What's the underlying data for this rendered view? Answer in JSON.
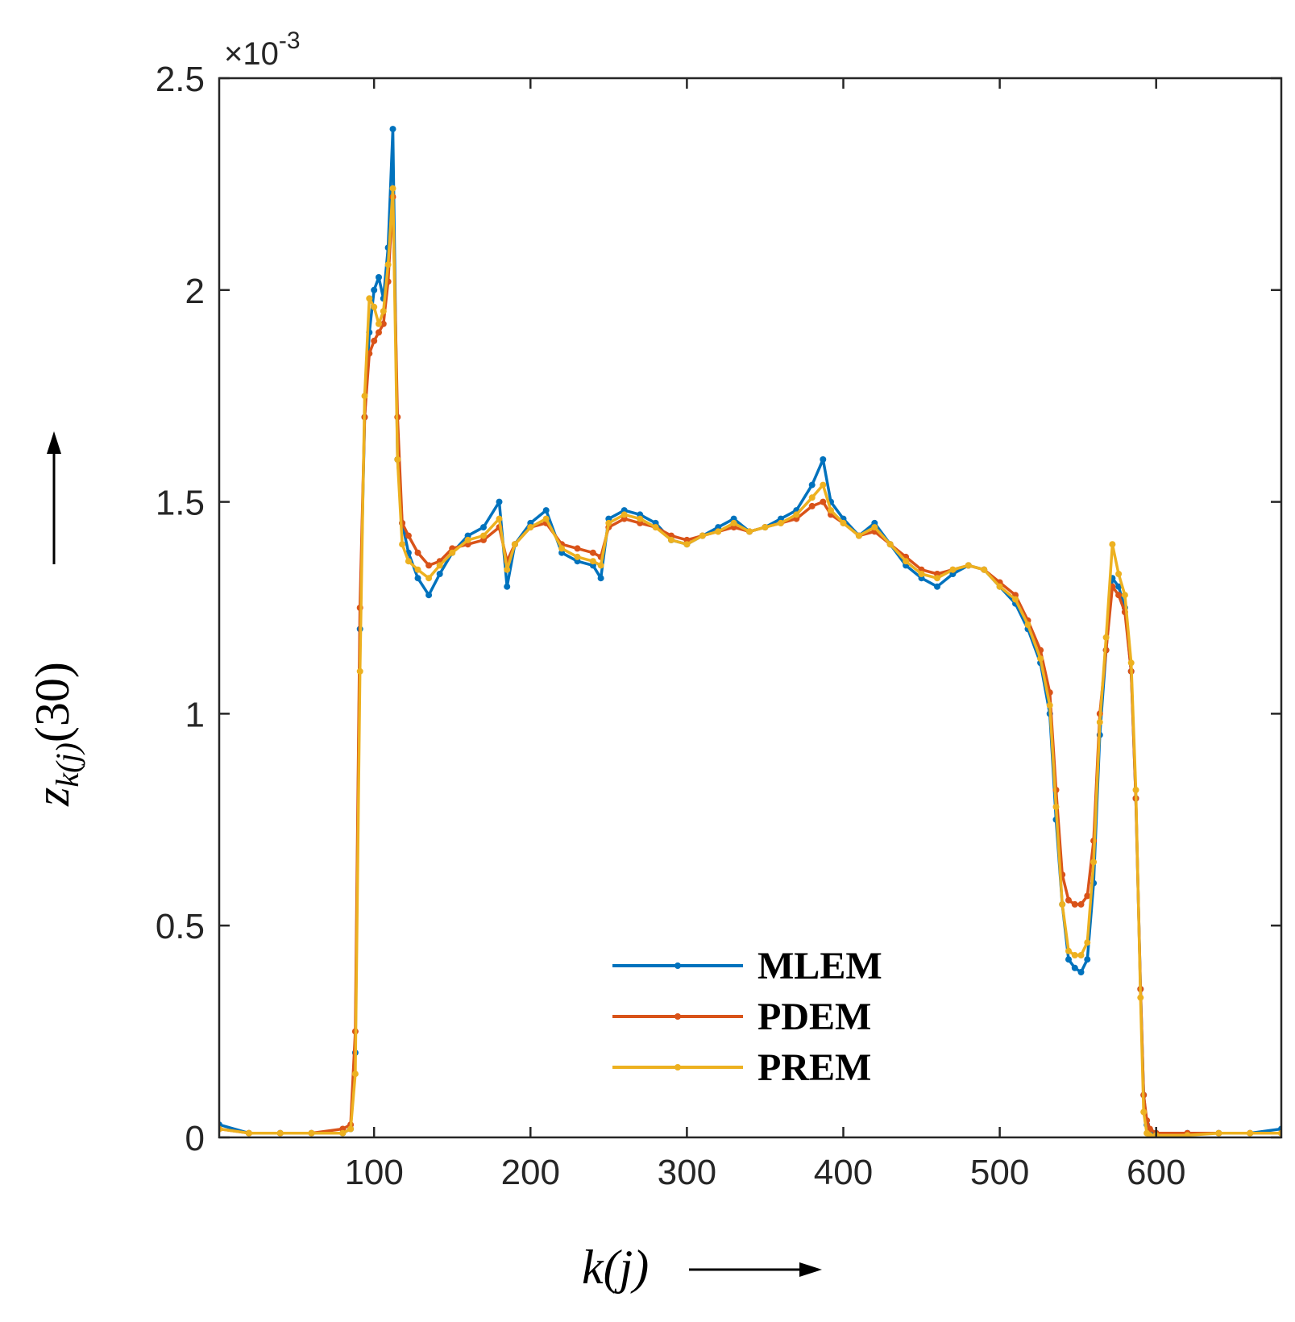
{
  "chart_data": {
    "type": "line",
    "title": "",
    "xlabel": "k(j)",
    "ylabel": "z_{k(j)}(30)",
    "y_exponent_label": "×10^-3",
    "xlim": [
      1,
      680
    ],
    "ylim": [
      0,
      2.5
    ],
    "xticks": [
      100,
      200,
      300,
      400,
      500,
      600
    ],
    "yticks": [
      0,
      0.5,
      1,
      1.5,
      2,
      2.5
    ],
    "ytick_labels": [
      "0",
      "0.5",
      "1",
      "1.5",
      "2",
      "2.5"
    ],
    "legend_position": "bottom-center",
    "series": [
      {
        "name": "MLEM",
        "color": "#0072BD",
        "x": [
          1,
          20,
          40,
          60,
          80,
          85,
          88,
          91,
          94,
          97,
          100,
          103,
          106,
          109,
          112,
          115,
          118,
          122,
          128,
          135,
          142,
          150,
          160,
          170,
          180,
          185,
          190,
          200,
          210,
          220,
          230,
          240,
          245,
          250,
          260,
          270,
          280,
          290,
          300,
          310,
          320,
          330,
          340,
          350,
          360,
          370,
          380,
          387,
          392,
          400,
          410,
          420,
          430,
          440,
          450,
          460,
          470,
          480,
          490,
          500,
          510,
          518,
          526,
          532,
          536,
          540,
          544,
          548,
          552,
          556,
          560,
          564,
          568,
          572,
          576,
          580,
          584,
          587,
          590,
          592,
          594,
          596,
          600,
          620,
          640,
          660,
          680
        ],
        "values": [
          0.03,
          0.01,
          0.01,
          0.01,
          0.01,
          0.02,
          0.2,
          1.2,
          1.7,
          1.9,
          2.0,
          2.03,
          1.98,
          2.1,
          2.38,
          1.6,
          1.45,
          1.38,
          1.32,
          1.28,
          1.33,
          1.38,
          1.42,
          1.44,
          1.5,
          1.3,
          1.4,
          1.45,
          1.48,
          1.38,
          1.36,
          1.35,
          1.32,
          1.46,
          1.48,
          1.47,
          1.45,
          1.41,
          1.4,
          1.42,
          1.44,
          1.46,
          1.43,
          1.44,
          1.46,
          1.48,
          1.54,
          1.6,
          1.5,
          1.46,
          1.42,
          1.45,
          1.4,
          1.35,
          1.32,
          1.3,
          1.33,
          1.35,
          1.34,
          1.3,
          1.26,
          1.2,
          1.12,
          1.0,
          0.75,
          0.55,
          0.42,
          0.4,
          0.39,
          0.42,
          0.6,
          0.95,
          1.15,
          1.32,
          1.3,
          1.25,
          1.1,
          0.8,
          0.35,
          0.1,
          0.03,
          0.01,
          0.01,
          0.01,
          0.01,
          0.01,
          0.02
        ]
      },
      {
        "name": "PDEM",
        "color": "#D95319",
        "x": [
          1,
          20,
          40,
          60,
          80,
          85,
          88,
          91,
          94,
          97,
          100,
          103,
          106,
          109,
          112,
          115,
          118,
          122,
          128,
          135,
          142,
          150,
          160,
          170,
          180,
          185,
          190,
          200,
          210,
          220,
          230,
          240,
          245,
          250,
          260,
          270,
          280,
          290,
          300,
          310,
          320,
          330,
          340,
          350,
          360,
          370,
          380,
          387,
          392,
          400,
          410,
          420,
          430,
          440,
          450,
          460,
          470,
          480,
          490,
          500,
          510,
          518,
          526,
          532,
          536,
          540,
          544,
          548,
          552,
          556,
          560,
          564,
          568,
          572,
          576,
          580,
          584,
          587,
          590,
          592,
          594,
          596,
          600,
          620,
          640,
          660,
          680
        ],
        "values": [
          0.02,
          0.01,
          0.01,
          0.01,
          0.02,
          0.03,
          0.25,
          1.25,
          1.7,
          1.85,
          1.88,
          1.9,
          1.92,
          2.02,
          2.22,
          1.7,
          1.45,
          1.42,
          1.38,
          1.35,
          1.36,
          1.39,
          1.4,
          1.41,
          1.44,
          1.36,
          1.4,
          1.44,
          1.45,
          1.4,
          1.39,
          1.38,
          1.37,
          1.44,
          1.46,
          1.45,
          1.44,
          1.42,
          1.41,
          1.42,
          1.43,
          1.44,
          1.43,
          1.44,
          1.45,
          1.46,
          1.49,
          1.5,
          1.47,
          1.45,
          1.42,
          1.43,
          1.4,
          1.37,
          1.34,
          1.33,
          1.34,
          1.35,
          1.34,
          1.31,
          1.28,
          1.22,
          1.15,
          1.05,
          0.82,
          0.62,
          0.56,
          0.55,
          0.55,
          0.57,
          0.7,
          1.0,
          1.15,
          1.3,
          1.28,
          1.24,
          1.1,
          0.8,
          0.35,
          0.1,
          0.04,
          0.02,
          0.01,
          0.01,
          0.01,
          0.01,
          0.01
        ]
      },
      {
        "name": "PREM",
        "color": "#EDB120",
        "x": [
          1,
          20,
          40,
          60,
          80,
          85,
          88,
          91,
          94,
          97,
          100,
          103,
          106,
          109,
          112,
          115,
          118,
          122,
          128,
          135,
          142,
          150,
          160,
          170,
          180,
          185,
          190,
          200,
          210,
          220,
          230,
          240,
          245,
          250,
          260,
          270,
          280,
          290,
          300,
          310,
          320,
          330,
          340,
          350,
          360,
          370,
          380,
          387,
          392,
          400,
          410,
          420,
          430,
          440,
          450,
          460,
          470,
          480,
          490,
          500,
          510,
          518,
          526,
          532,
          536,
          540,
          544,
          548,
          552,
          556,
          560,
          564,
          568,
          572,
          576,
          580,
          584,
          587,
          590,
          592,
          594,
          596,
          600,
          620,
          640,
          660,
          680
        ],
        "values": [
          0.02,
          0.01,
          0.01,
          0.01,
          0.01,
          0.02,
          0.15,
          1.1,
          1.75,
          1.98,
          1.96,
          1.92,
          1.95,
          2.06,
          2.24,
          1.6,
          1.4,
          1.36,
          1.34,
          1.32,
          1.35,
          1.38,
          1.41,
          1.42,
          1.46,
          1.34,
          1.4,
          1.44,
          1.46,
          1.39,
          1.37,
          1.36,
          1.35,
          1.45,
          1.47,
          1.46,
          1.44,
          1.41,
          1.4,
          1.42,
          1.43,
          1.45,
          1.43,
          1.44,
          1.45,
          1.47,
          1.51,
          1.54,
          1.48,
          1.45,
          1.42,
          1.44,
          1.4,
          1.36,
          1.33,
          1.32,
          1.34,
          1.35,
          1.34,
          1.3,
          1.27,
          1.21,
          1.13,
          1.02,
          0.78,
          0.55,
          0.44,
          0.43,
          0.43,
          0.46,
          0.65,
          0.98,
          1.18,
          1.4,
          1.33,
          1.28,
          1.12,
          0.82,
          0.33,
          0.06,
          0.01,
          0.005,
          0.005,
          0.005,
          0.01,
          0.01,
          0.01
        ]
      }
    ]
  }
}
